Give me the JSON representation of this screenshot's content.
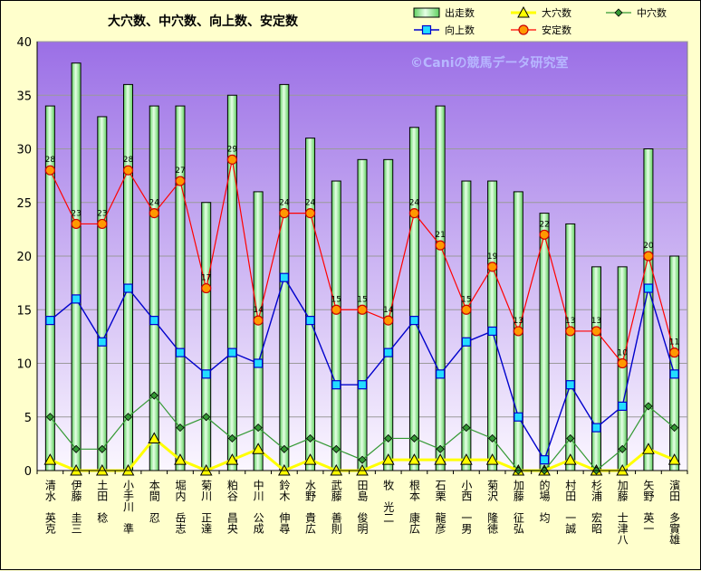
{
  "chart_data": {
    "type": "bar",
    "title": "大穴数、中穴数、向上数、安定数",
    "watermark": "©Caniの競馬データ研究室",
    "xlabel": "",
    "ylabel": "",
    "ylim": [
      0,
      40
    ],
    "yticks": [
      0,
      5,
      10,
      15,
      20,
      25,
      30,
      35,
      40
    ],
    "grid": true,
    "legend_position": "top",
    "categories": [
      "清水　英克",
      "伊藤　圭三",
      "土田　稔",
      "小手川　準",
      "本間　忍",
      "堀内　岳志",
      "菊川　正達",
      "粕谷　昌央",
      "中川　公成",
      "鈴木　伸尋",
      "水野　貴広",
      "武藤　善則",
      "田島　俊明",
      "牧　光二",
      "根本　康広",
      "石栗　龍彦",
      "小西　一男",
      "菊沢　隆徳",
      "加藤　征弘",
      "的場　均",
      "村田　一誠",
      "杉浦　宏昭",
      "加藤　士津八",
      "矢野　英一",
      "濱田　多實雄"
    ],
    "series": [
      {
        "name": "出走数",
        "kind": "bar",
        "color": "#99ff99",
        "values": [
          34,
          38,
          33,
          36,
          34,
          34,
          25,
          35,
          26,
          36,
          31,
          27,
          29,
          29,
          32,
          34,
          27,
          27,
          26,
          24,
          23,
          19,
          19,
          30,
          20
        ]
      },
      {
        "name": "大穴数",
        "kind": "line",
        "marker": "triangle",
        "color": "#ffff00",
        "values": [
          1,
          0,
          0,
          0,
          3,
          1,
          0,
          1,
          2,
          0,
          1,
          0,
          0,
          1,
          1,
          1,
          1,
          1,
          0,
          0,
          1,
          0,
          0,
          2,
          1
        ]
      },
      {
        "name": "中穴数",
        "kind": "line",
        "marker": "diamond",
        "color": "#339933",
        "values": [
          5,
          2,
          2,
          5,
          7,
          4,
          5,
          3,
          4,
          2,
          3,
          2,
          1,
          3,
          3,
          2,
          4,
          3,
          0,
          0,
          3,
          0,
          2,
          6,
          4
        ]
      },
      {
        "name": "向上数",
        "kind": "line",
        "marker": "square",
        "color": "#0000cc",
        "values": [
          14,
          16,
          12,
          17,
          14,
          11,
          9,
          11,
          10,
          18,
          14,
          8,
          8,
          11,
          14,
          9,
          12,
          13,
          5,
          1,
          8,
          4,
          6,
          17,
          9
        ]
      },
      {
        "name": "安定数",
        "kind": "line",
        "marker": "circle",
        "color": "#ff0000",
        "values": [
          28,
          23,
          23,
          28,
          24,
          27,
          17,
          29,
          14,
          24,
          24,
          15,
          15,
          14,
          24,
          21,
          15,
          19,
          13,
          22,
          13,
          13,
          10,
          20,
          11
        ],
        "data_labels": true
      }
    ]
  }
}
